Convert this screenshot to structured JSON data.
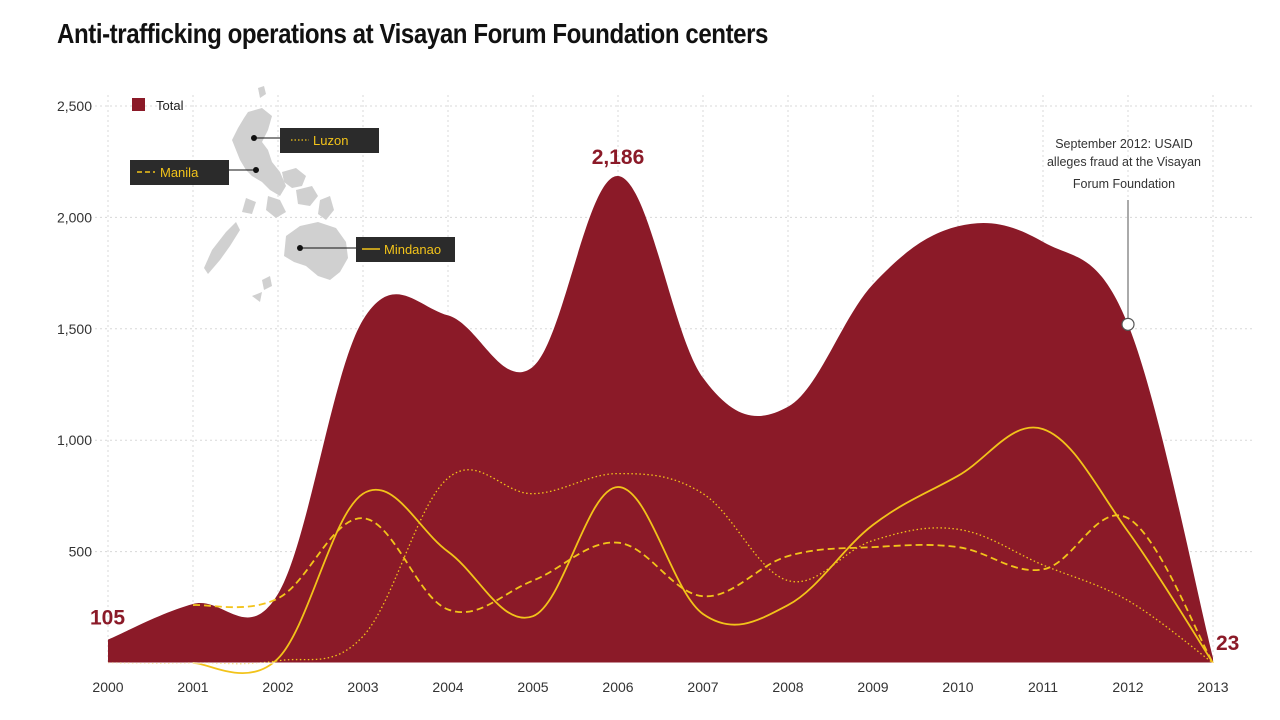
{
  "title": "Anti-trafficking operations at Visayan Forum Foundation centers",
  "colors": {
    "total_fill": "#8b1a28",
    "region_line": "#f2c31a",
    "map_fill": "#d0d0d0",
    "label_box": "#2b2b2b",
    "grid": "#d8d8d8"
  },
  "chart_data": {
    "type": "area",
    "title": "Anti-trafficking operations at Visayan Forum Foundation centers",
    "xlabel": "",
    "ylabel": "",
    "x": [
      2000,
      2001,
      2002,
      2003,
      2004,
      2005,
      2006,
      2007,
      2008,
      2009,
      2010,
      2011,
      2012,
      2013
    ],
    "ylim": [
      0,
      2500
    ],
    "yticks": [
      500,
      1000,
      1500,
      2000,
      2500
    ],
    "ytick_labels": [
      "500",
      "1,000",
      "1,500",
      "2,000",
      "2,500"
    ],
    "grid": true,
    "series": [
      {
        "name": "Total",
        "style": "area",
        "values": [
          105,
          265,
          310,
          1540,
          1560,
          1330,
          2186,
          1280,
          1150,
          1700,
          1960,
          1890,
          1520,
          23
        ]
      },
      {
        "name": "Luzon",
        "style": "dotted",
        "values": [
          0,
          0,
          10,
          120,
          830,
          760,
          850,
          760,
          370,
          550,
          600,
          440,
          280,
          0
        ]
      },
      {
        "name": "Manila",
        "style": "dashed",
        "values": [
          null,
          260,
          290,
          650,
          240,
          370,
          540,
          300,
          480,
          520,
          520,
          420,
          650,
          0
        ]
      },
      {
        "name": "Mindanao",
        "style": "solid",
        "values": [
          null,
          0,
          20,
          760,
          500,
          210,
          790,
          220,
          260,
          620,
          840,
          1050,
          590,
          0
        ]
      }
    ],
    "callouts": [
      {
        "x": 2000,
        "label": "105",
        "value": 105
      },
      {
        "x": 2006,
        "label": "2,186",
        "value": 2186
      },
      {
        "x": 2013,
        "label": "23",
        "value": 23
      }
    ],
    "annotation": {
      "x": 2012,
      "value": 1520,
      "lines": [
        "September 2012: USAID",
        "alleges fraud at the Visayan",
        "Forum Foundation"
      ]
    },
    "legend": {
      "position": "top-left",
      "entries": [
        "Total"
      ]
    },
    "map_labels": [
      "Luzon",
      "Manila",
      "Mindanao"
    ]
  }
}
